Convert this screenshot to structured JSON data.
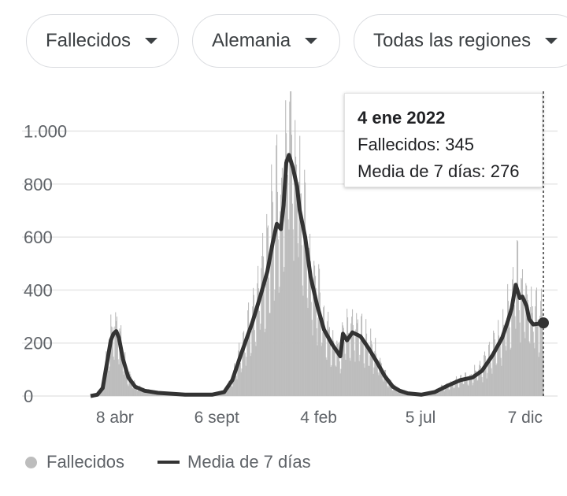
{
  "filters": {
    "metric": "Fallecidos",
    "country": "Alemania",
    "region": "Todas las regiones"
  },
  "tooltip": {
    "date": "4 ene 2022",
    "daily_line": "Fallecidos: 345",
    "avg_line": "Media de 7 días: 276"
  },
  "legend": {
    "daily": "Fallecidos",
    "avg": "Media de 7 días"
  },
  "colors": {
    "bars": "#bdbdbd",
    "line": "#333333",
    "grid": "#e6e6e6"
  },
  "chart_data": {
    "type": "bar",
    "ylim": [
      0,
      1150
    ],
    "y_ticks": [
      0,
      200,
      400,
      600,
      800,
      1000
    ],
    "y_tick_labels": [
      "0",
      "200",
      "400",
      "600",
      "800",
      "1.000"
    ],
    "x_tick_labels": [
      "8 abr",
      "6 sept",
      "4 feb",
      "5 jul",
      "7 dic"
    ],
    "x_tick_days": [
      36,
      187,
      338,
      489,
      644
    ],
    "x_range_days": [
      0,
      671
    ],
    "series": [
      {
        "name": "Fallecidos",
        "kind": "bar",
        "values_note": "daily values, approximated from 7-day average"
      },
      {
        "name": "Media de 7 días",
        "kind": "line",
        "points": [
          [
            0,
            0
          ],
          [
            10,
            5
          ],
          [
            18,
            30
          ],
          [
            24,
            120
          ],
          [
            30,
            210
          ],
          [
            34,
            235
          ],
          [
            38,
            245
          ],
          [
            42,
            220
          ],
          [
            48,
            140
          ],
          [
            56,
            70
          ],
          [
            66,
            35
          ],
          [
            80,
            20
          ],
          [
            100,
            12
          ],
          [
            140,
            5
          ],
          [
            180,
            5
          ],
          [
            198,
            15
          ],
          [
            210,
            60
          ],
          [
            222,
            150
          ],
          [
            240,
            280
          ],
          [
            252,
            380
          ],
          [
            262,
            470
          ],
          [
            270,
            580
          ],
          [
            276,
            650
          ],
          [
            282,
            630
          ],
          [
            286,
            720
          ],
          [
            290,
            880
          ],
          [
            294,
            910
          ],
          [
            300,
            860
          ],
          [
            306,
            790
          ],
          [
            310,
            700
          ],
          [
            318,
            600
          ],
          [
            326,
            450
          ],
          [
            336,
            340
          ],
          [
            346,
            250
          ],
          [
            358,
            195
          ],
          [
            370,
            150
          ],
          [
            374,
            235
          ],
          [
            380,
            210
          ],
          [
            388,
            240
          ],
          [
            400,
            225
          ],
          [
            412,
            180
          ],
          [
            424,
            130
          ],
          [
            436,
            75
          ],
          [
            448,
            35
          ],
          [
            458,
            20
          ],
          [
            470,
            10
          ],
          [
            490,
            5
          ],
          [
            510,
            15
          ],
          [
            530,
            40
          ],
          [
            548,
            60
          ],
          [
            566,
            70
          ],
          [
            580,
            95
          ],
          [
            596,
            155
          ],
          [
            610,
            220
          ],
          [
            618,
            280
          ],
          [
            624,
            330
          ],
          [
            630,
            420
          ],
          [
            636,
            370
          ],
          [
            640,
            375
          ],
          [
            646,
            340
          ],
          [
            650,
            290
          ],
          [
            656,
            270
          ],
          [
            671,
            276
          ]
        ]
      }
    ],
    "highlight": {
      "date": "4 ene 2022",
      "daily": 345,
      "avg": 276
    }
  }
}
